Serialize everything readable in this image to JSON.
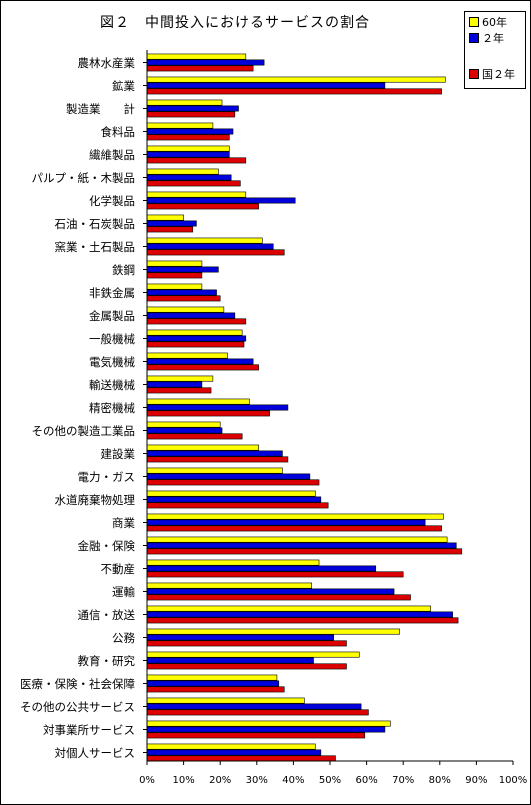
{
  "chart_data": {
    "type": "bar",
    "orientation": "horizontal",
    "title": "図２　中間投入におけるサービスの割合",
    "xlim": [
      0,
      100
    ],
    "x_ticks": [
      "0%",
      "10%",
      "20%",
      "30%",
      "40%",
      "50%",
      "60%",
      "70%",
      "80%",
      "90%",
      "100%"
    ],
    "grid": false,
    "legend_position": "top-right",
    "categories": [
      "農林水産業",
      "鉱業",
      "製造業　　計",
      "食料品",
      "繊維製品",
      "パルプ・紙・木製品",
      "化学製品",
      "石油・石炭製品",
      "窯業・土石製品",
      "鉄鋼",
      "非鉄金属",
      "金属製品",
      "一般機械",
      "電気機械",
      "輸送機械",
      "精密機械",
      "その他の製造工業品",
      "建設業",
      "電力・ガス",
      "水道廃棄物処理",
      "商業",
      "金融・保険",
      "不動産",
      "運輸",
      "通信・放送",
      "公務",
      "教育・研究",
      "医療・保険・社会保障",
      "その他の公共サービス",
      "対事業所サービス",
      "対個人サービス"
    ],
    "series": [
      {
        "name": "60年",
        "color": "#ffff00",
        "values": [
          27,
          81.5,
          20.5,
          18,
          22.5,
          19.5,
          27,
          10,
          31.5,
          15,
          15,
          21,
          26,
          22,
          18,
          28,
          20,
          30.5,
          37,
          46,
          81,
          82,
          47,
          45,
          77.5,
          69,
          58,
          35.5,
          43,
          66.5,
          46
        ]
      },
      {
        "name": "２年",
        "color": "#0000dd",
        "values": [
          32,
          65,
          25,
          23.5,
          22.5,
          23,
          40.5,
          13.5,
          34.5,
          19.5,
          19,
          24,
          27,
          29,
          15,
          38.5,
          20.5,
          37,
          44.5,
          47.5,
          76,
          84.5,
          62.5,
          67.5,
          83.5,
          51,
          45.5,
          36,
          58.5,
          65,
          47.5
        ]
      },
      {
        "name": "国２年",
        "color": "#dd0000",
        "values": [
          29,
          80.5,
          24,
          22.5,
          27,
          25.5,
          30.5,
          12.5,
          37.5,
          15,
          20,
          27,
          26.5,
          30.5,
          17.5,
          33.5,
          26,
          38.5,
          47,
          49.5,
          80.5,
          86,
          70,
          72,
          85,
          54.5,
          54.5,
          37.5,
          60.5,
          59.5,
          51.5
        ]
      }
    ]
  }
}
